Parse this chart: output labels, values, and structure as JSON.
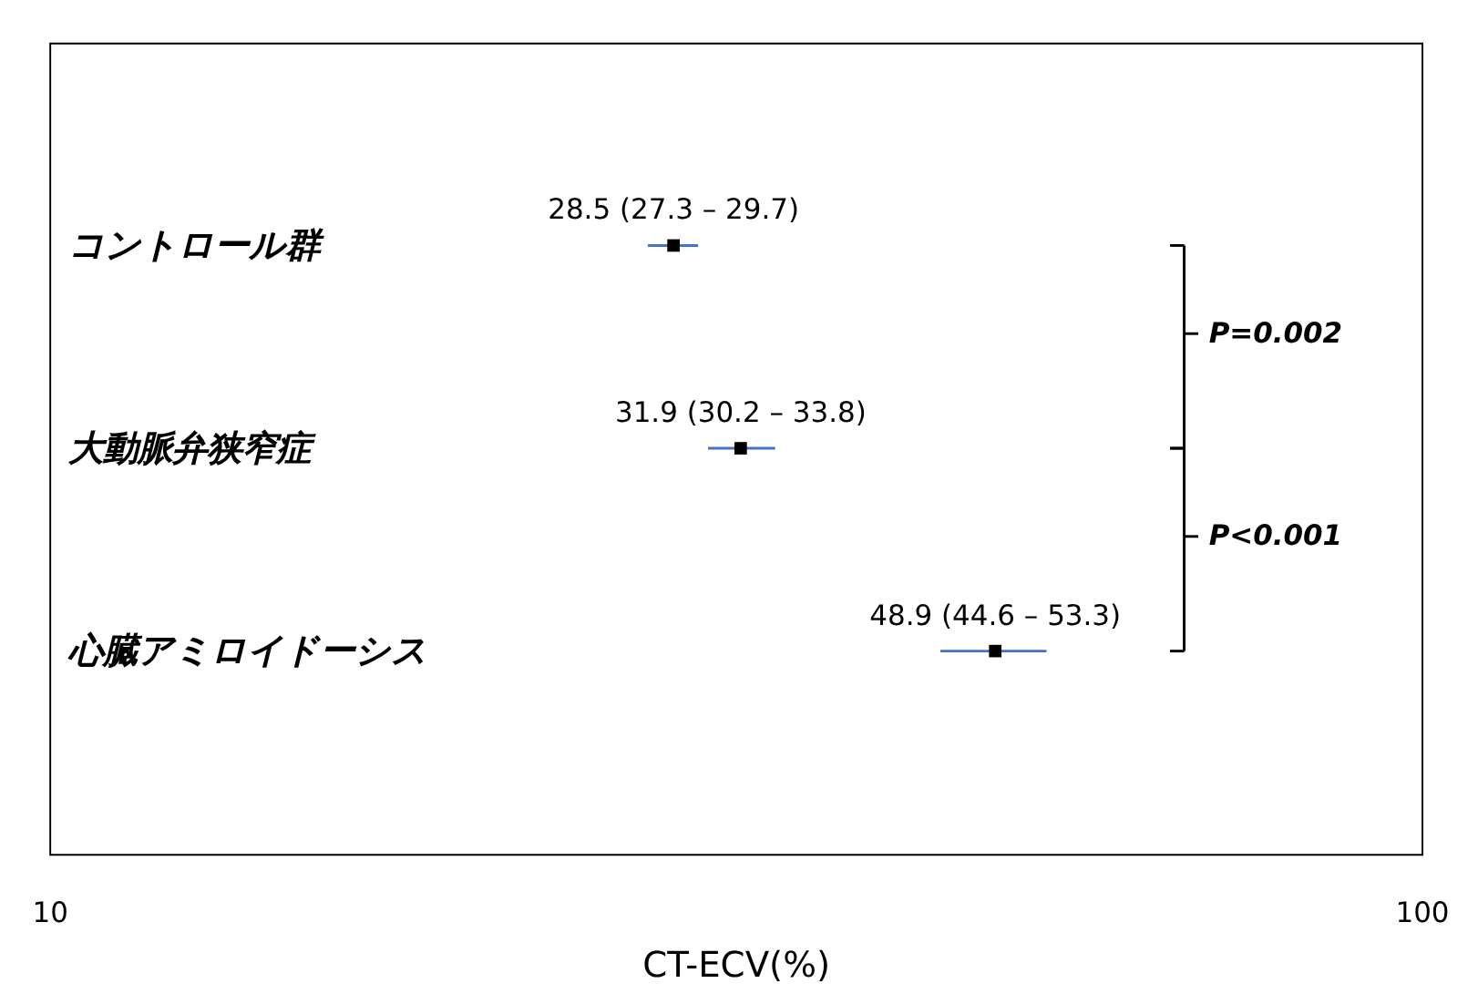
{
  "chart_data": {
    "type": "scatter",
    "orientation": "horizontal",
    "log": "x",
    "categories": [
      "コントロール群",
      "大動脈弁狭窄症",
      "心臓アミロイドーシス"
    ],
    "values": [
      28.5,
      31.9,
      48.9
    ],
    "errors": [
      [
        27.3,
        29.7
      ],
      [
        30.2,
        33.8
      ],
      [
        44.6,
        53.3
      ]
    ],
    "value_labels": [
      "28.5 (27.3 – 29.7)",
      "31.9 (30.2 – 33.8)",
      "48.9 (44.6 – 53.3)"
    ],
    "color": "#000000",
    "marker": "square",
    "xlim": [
      10,
      100
    ],
    "xticks": [
      10,
      100
    ],
    "xlabel": "CT-ECV(%)",
    "annotations": [
      "P=0.002",
      "P<0.001"
    ],
    "grid": false
  }
}
